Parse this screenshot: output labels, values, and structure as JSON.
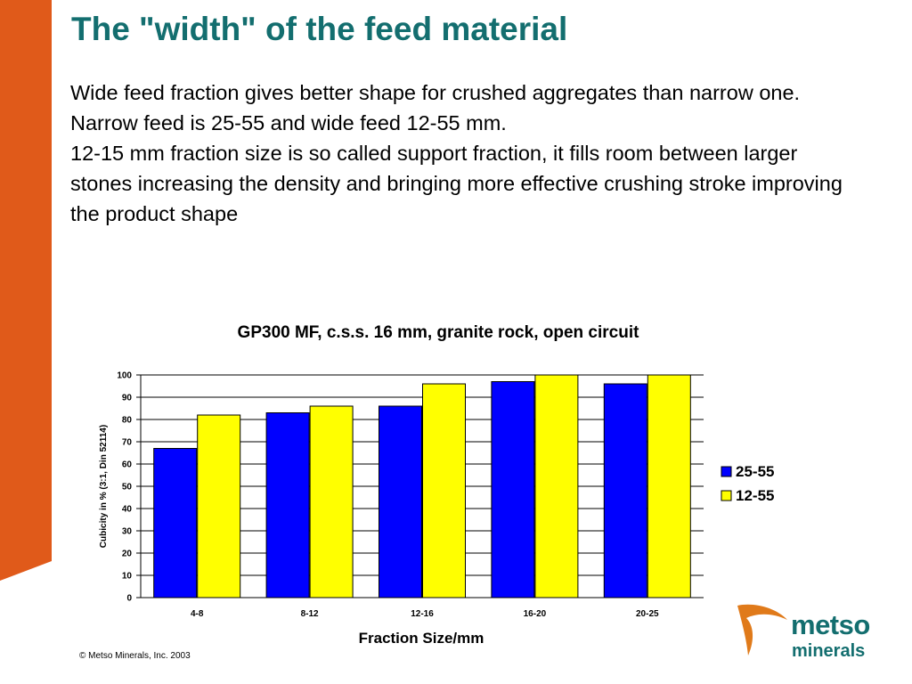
{
  "slide": {
    "title": "The \"width\" of the feed material",
    "paragraphs": [
      "Wide feed fraction gives better shape for crushed aggregates than narrow one. Narrow feed is 25-55 and wide feed 12-55 mm.",
      "12-15 mm fraction size is so called support fraction, it fills room between larger stones increasing the density and bringing more effective crushing stroke improving the product shape"
    ],
    "copyright": "© Metso Minerals, Inc. 2003",
    "logo": {
      "word": "metso",
      "sub": "minerals"
    },
    "accent_color": "#e05a1a",
    "title_color": "#136e6f"
  },
  "chart_data": {
    "type": "bar",
    "title": "GP300 MF, c.s.s. 16 mm, granite rock, open circuit",
    "xlabel": "Fraction Size/mm",
    "ylabel": "Cubicity in % (3:1, Din 52114)",
    "categories": [
      "4-8",
      "8-12",
      "12-16",
      "16-20",
      "20-25"
    ],
    "series": [
      {
        "name": "25-55",
        "color": "#0000ff",
        "values": [
          67,
          83,
          86,
          97,
          96
        ]
      },
      {
        "name": "12-55",
        "color": "#ffff00",
        "values": [
          82,
          86,
          96,
          100,
          100
        ]
      }
    ],
    "ylim": [
      0,
      100
    ],
    "yticks": [
      0,
      10,
      20,
      30,
      40,
      50,
      60,
      70,
      80,
      90,
      100
    ],
    "grid": true,
    "legend": "right"
  }
}
